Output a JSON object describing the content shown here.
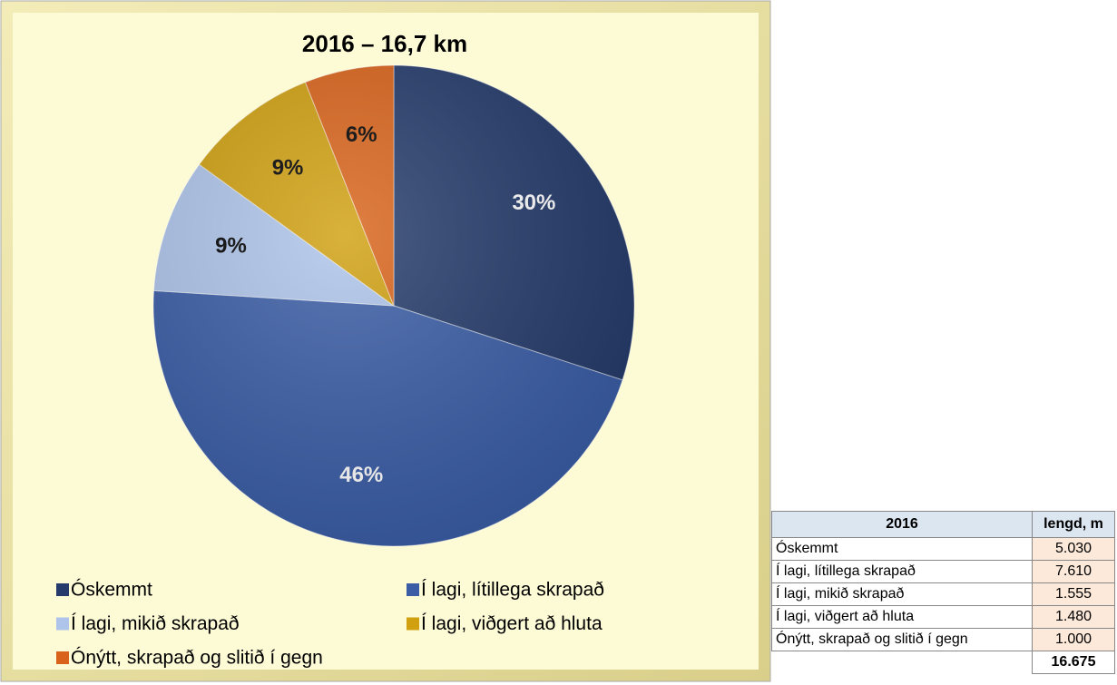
{
  "chart_data": {
    "type": "pie",
    "title": "2016 – 16,7 km",
    "categories": [
      "Óskemmt",
      "Í lagi, lítillega skrapað",
      "Í lagi, mikið skrapað",
      "Í lagi, viðgert að hluta",
      "Ónýtt, skrapað og slitið í gegn"
    ],
    "values": [
      30,
      46,
      9,
      9,
      6
    ],
    "value_labels": [
      "30%",
      "46%",
      "9%",
      "9%",
      "6%"
    ],
    "colors": [
      "#243b6b",
      "#3a5da6",
      "#aec4ea",
      "#d0a010",
      "#d9631a"
    ]
  },
  "table": {
    "header": [
      "2016",
      "lengd, m"
    ],
    "rows": [
      [
        "Óskemmt",
        "5.030"
      ],
      [
        "Í lagi, lítillega skrapað",
        "7.610"
      ],
      [
        "Í lagi, mikið skrapað",
        "1.555"
      ],
      [
        "Í lagi, viðgert að hluta",
        "1.480"
      ],
      [
        "Ónýtt, skrapað og slitið í gegn",
        "1.000"
      ]
    ],
    "total": "16.675"
  }
}
